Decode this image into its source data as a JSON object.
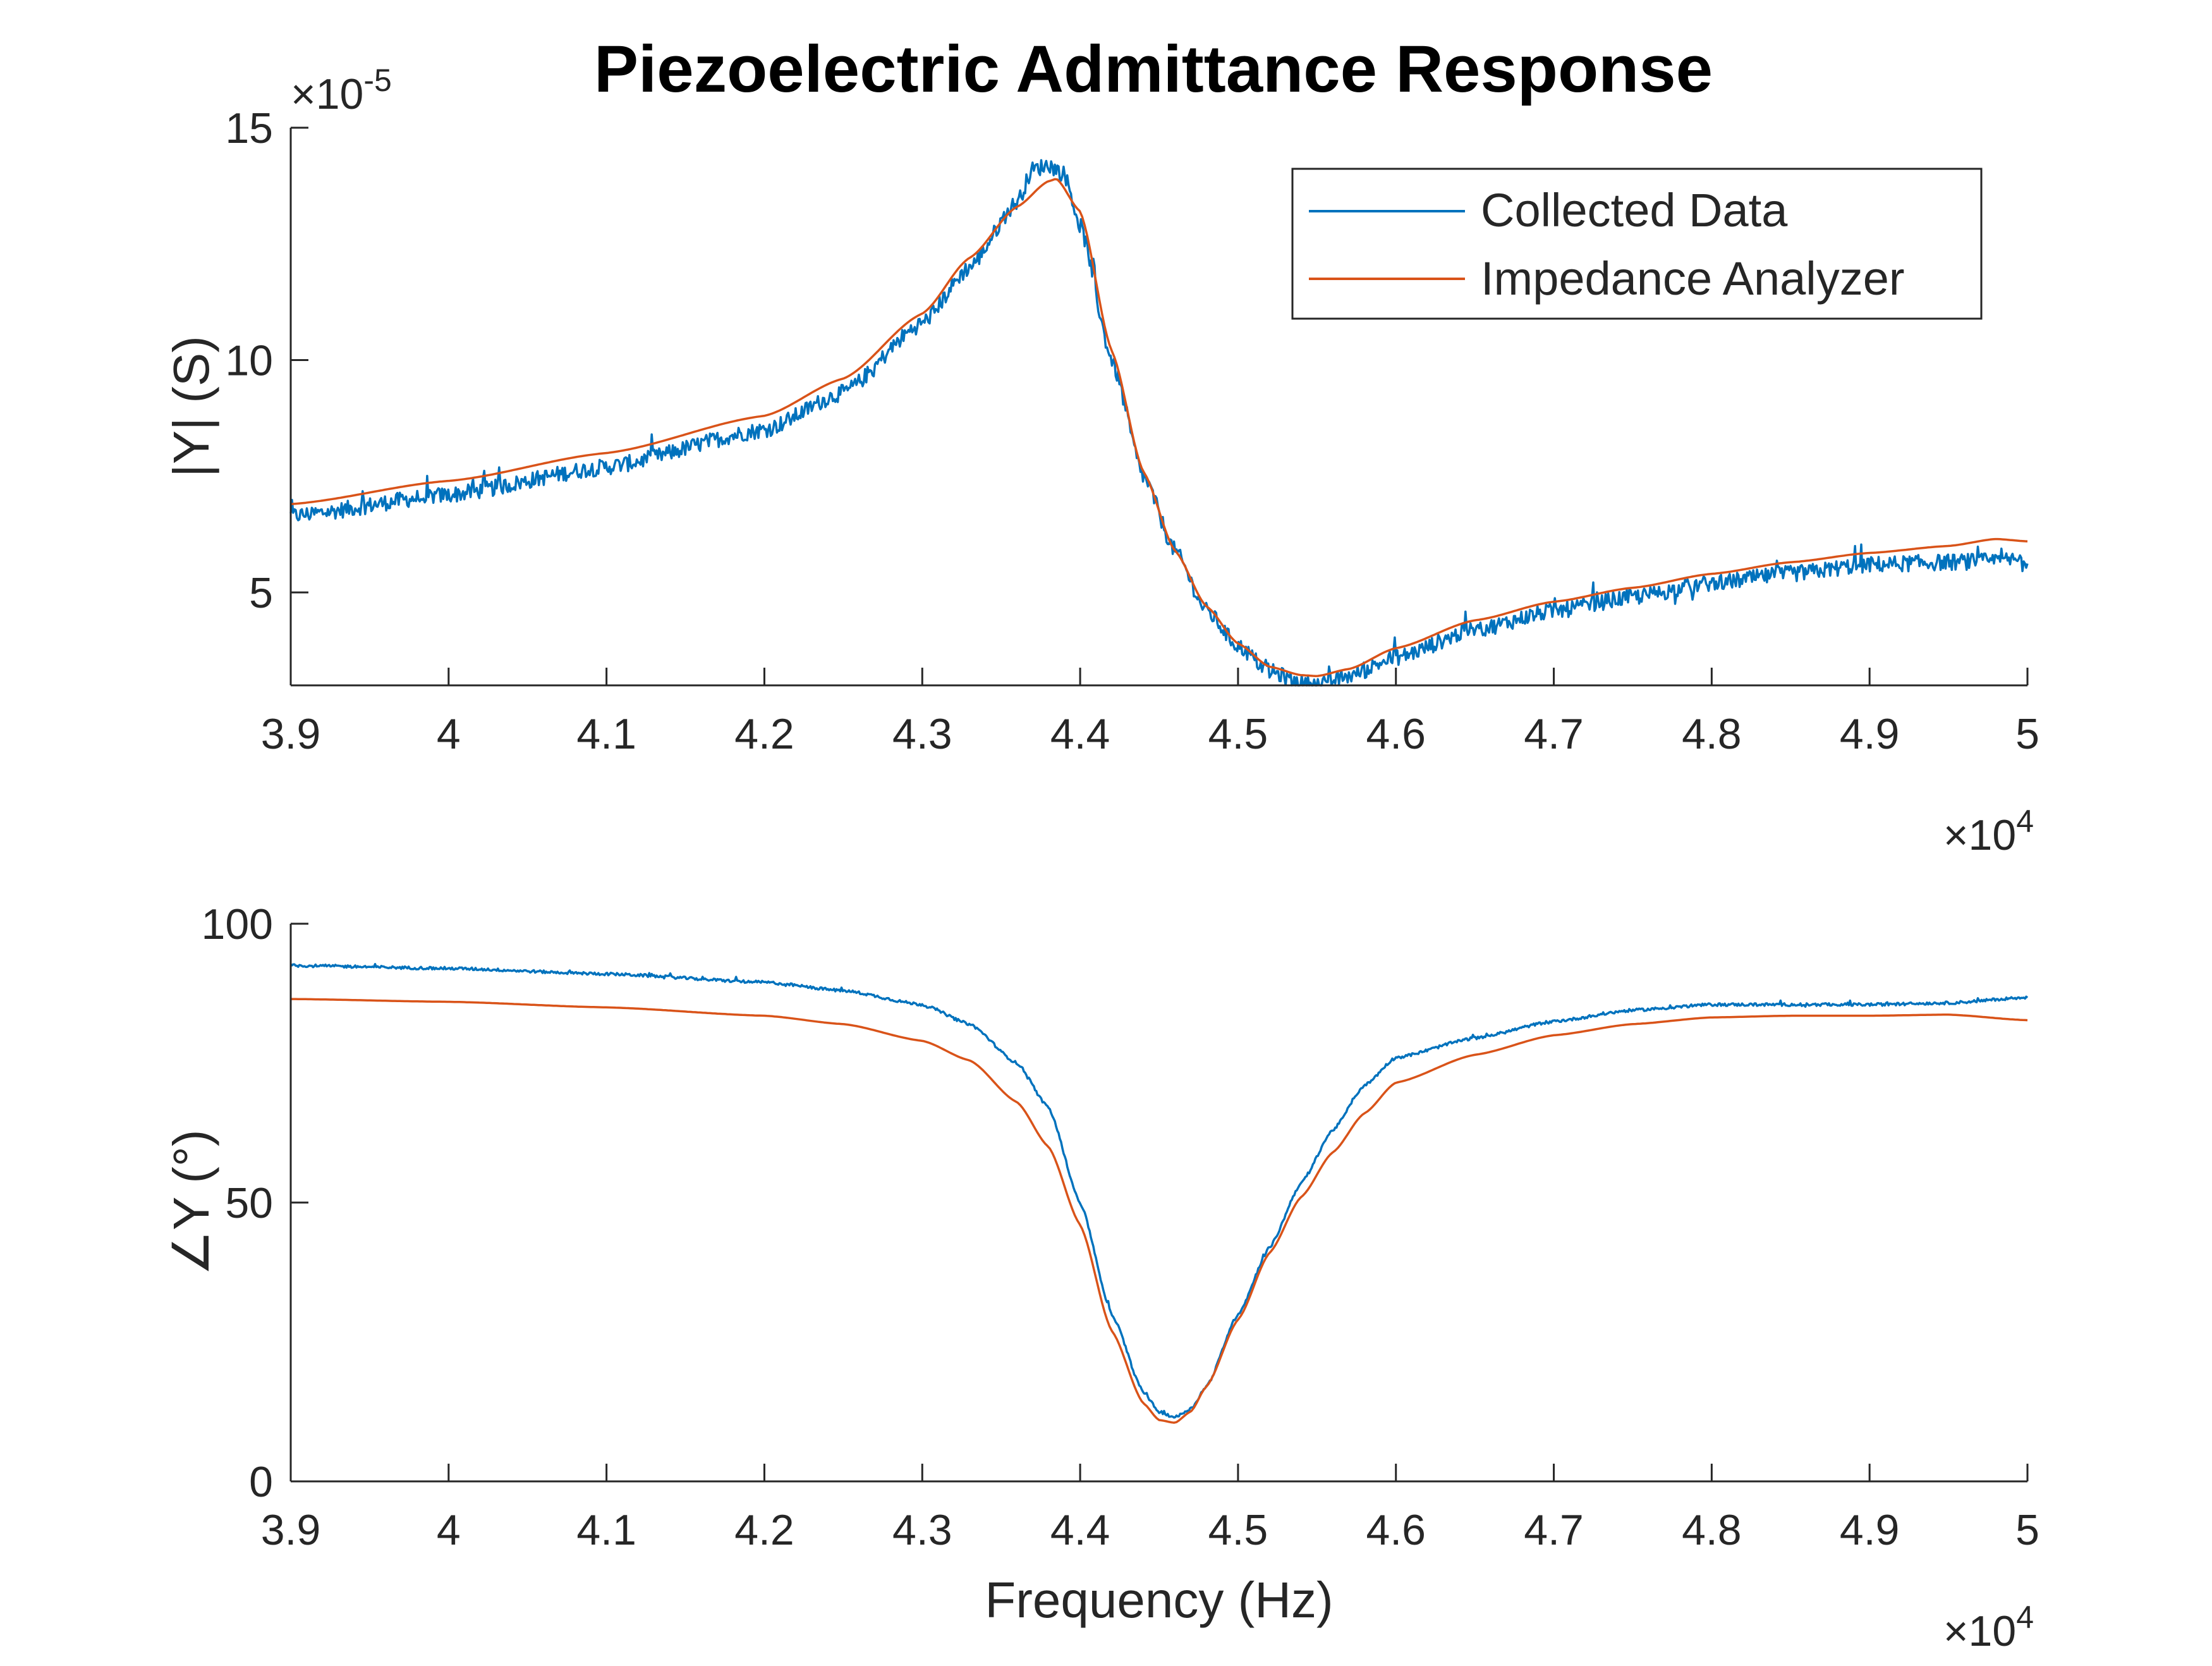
{
  "figure": {
    "title": "Piezoelectric Admittance Response"
  },
  "legend": {
    "items": [
      {
        "label": "Collected Data",
        "color": "#0072BD"
      },
      {
        "label": "Impedance Analyzer",
        "color": "#D95319"
      }
    ],
    "placement": "top-right (top subplot)"
  },
  "chart_data": [
    {
      "type": "line",
      "title": "Piezoelectric Admittance Response",
      "xlabel": "",
      "ylabel": "|Y| (S)",
      "xlim": [
        39000,
        50000
      ],
      "ylim": [
        3e-05,
        0.00015
      ],
      "x_exponent_label": "×10",
      "x_exponent": "4",
      "y_exponent_label": "×10",
      "y_exponent": "-5",
      "xticks": [
        39000,
        40000,
        41000,
        42000,
        43000,
        44000,
        45000,
        46000,
        47000,
        48000,
        49000,
        50000
      ],
      "xtick_labels": [
        "3.9",
        "4",
        "4.1",
        "4.2",
        "4.3",
        "4.4",
        "4.5",
        "4.6",
        "4.7",
        "4.8",
        "4.9",
        "5"
      ],
      "yticks": [
        5e-05,
        0.0001,
        0.00015
      ],
      "ytick_labels": [
        "5",
        "10",
        "15"
      ],
      "grid": false,
      "legend": "top-right",
      "series": [
        {
          "name": "Collected Data",
          "color": "#0072BD",
          "noise": 3.5e-06,
          "x": [
            39000,
            40000,
            41000,
            42000,
            42500,
            43000,
            43300,
            43600,
            43700,
            43800,
            43900,
            44000,
            44200,
            44400,
            44600,
            44800,
            45000,
            45200,
            45400,
            45500,
            45700,
            46000,
            46500,
            47000,
            47500,
            48000,
            48500,
            49000,
            49500,
            50000
          ],
          "y": [
            6.65e-05,
            7.1e-05,
            7.7e-05,
            8.5e-05,
            9.3e-05,
            0.000108,
            0.00012,
            0.000134,
            0.000141,
            0.000142,
            0.00014,
            0.000129,
            0.0001,
            7.5e-05,
            5.9e-05,
            4.6e-05,
            3.85e-05,
            3.3e-05,
            3.05e-05,
            3e-05,
            3.2e-05,
            3.6e-05,
            4.2e-05,
            4.6e-05,
            4.9e-05,
            5.2e-05,
            5.4e-05,
            5.6e-05,
            5.65e-05,
            5.7e-05
          ]
        },
        {
          "name": "Impedance Analyzer",
          "color": "#D95319",
          "x": [
            39000,
            40000,
            41000,
            42000,
            42500,
            43000,
            43300,
            43600,
            43800,
            43850,
            44000,
            44200,
            44400,
            44600,
            44800,
            45000,
            45200,
            45400,
            45500,
            45700,
            46000,
            46500,
            47000,
            47500,
            48000,
            48500,
            49000,
            49500,
            49800,
            50000
          ],
          "y": [
            6.9e-05,
            7.4e-05,
            8e-05,
            8.8e-05,
            9.6e-05,
            0.00011,
            0.000122,
            0.000133,
            0.0001385,
            0.000139,
            0.000132,
            0.000102,
            7.6e-05,
            5.9e-05,
            4.7e-05,
            3.9e-05,
            3.4e-05,
            3.22e-05,
            3.2e-05,
            3.35e-05,
            3.8e-05,
            4.4e-05,
            4.8e-05,
            5.1e-05,
            5.4e-05,
            5.65e-05,
            5.85e-05,
            6e-05,
            6.15e-05,
            6.1e-05
          ]
        }
      ]
    },
    {
      "type": "line",
      "title": "",
      "xlabel": "Frequency (Hz)",
      "ylabel": "∠Y (°)",
      "xlim": [
        39000,
        50000
      ],
      "ylim": [
        0,
        100
      ],
      "x_exponent_label": "×10",
      "x_exponent": "4",
      "xticks": [
        39000,
        40000,
        41000,
        42000,
        43000,
        44000,
        45000,
        46000,
        47000,
        48000,
        49000,
        50000
      ],
      "xtick_labels": [
        "3.9",
        "4",
        "4.1",
        "4.2",
        "4.3",
        "4.4",
        "4.5",
        "4.6",
        "4.7",
        "4.8",
        "4.9",
        "5"
      ],
      "yticks": [
        0,
        50,
        100
      ],
      "ytick_labels": [
        "0",
        "50",
        "100"
      ],
      "grid": false,
      "series": [
        {
          "name": "Collected Data",
          "color": "#0072BD",
          "noise": 0.5,
          "x": [
            39000,
            40000,
            41000,
            42000,
            42500,
            43000,
            43300,
            43600,
            43800,
            44000,
            44200,
            44400,
            44500,
            44600,
            44700,
            44800,
            45000,
            45200,
            45400,
            45600,
            45800,
            46000,
            46500,
            47000,
            47500,
            48000,
            48500,
            49000,
            49500,
            50000
          ],
          "y": [
            92.5,
            92.0,
            91.0,
            89.5,
            88.0,
            85.5,
            82.0,
            75.0,
            67.0,
            50.0,
            30.0,
            16.0,
            12.5,
            11.5,
            13.0,
            17.0,
            30.0,
            42.0,
            53.5,
            63.0,
            71.0,
            76.0,
            79.5,
            82.5,
            84.5,
            85.5,
            85.5,
            85.5,
            85.8,
            86.8
          ]
        },
        {
          "name": "Impedance Analyzer",
          "color": "#D95319",
          "x": [
            39000,
            40000,
            41000,
            42000,
            42500,
            43000,
            43300,
            43600,
            43800,
            44000,
            44200,
            44400,
            44500,
            44600,
            44700,
            44800,
            45000,
            45200,
            45400,
            45600,
            45800,
            46000,
            46500,
            47000,
            47500,
            48000,
            48500,
            49000,
            49500,
            50000
          ],
          "y": [
            86.5,
            86.0,
            85.0,
            83.5,
            82.0,
            79.0,
            75.5,
            68.0,
            60.0,
            46.0,
            27.0,
            14.0,
            11.0,
            10.5,
            12.5,
            17.0,
            29.0,
            41.0,
            51.0,
            59.0,
            66.0,
            71.5,
            76.5,
            80.0,
            82.0,
            83.2,
            83.5,
            83.5,
            83.7,
            82.7
          ]
        }
      ]
    }
  ]
}
